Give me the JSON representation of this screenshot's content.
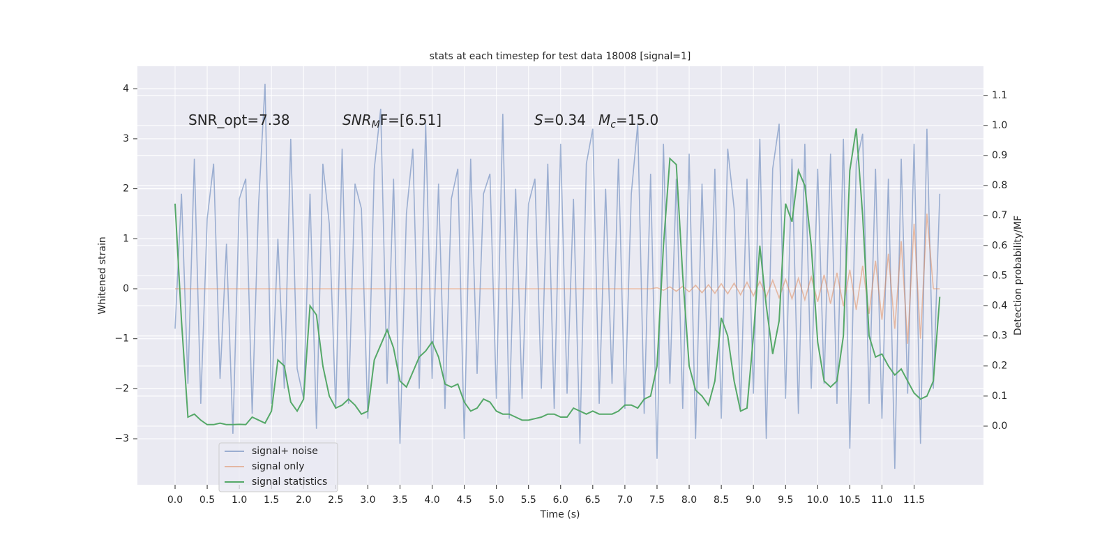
{
  "chart_data": {
    "type": "line",
    "title": "stats at each timestep for test data 18008 [signal=1]",
    "xlabel": "Time (s)",
    "ylabel": "Whitened strain",
    "y2label": "Detection probability/MF",
    "annotations": [
      {
        "main": "SNR_opt=7.38"
      },
      {
        "main": "SNR",
        "sub": "M",
        "tail": "F=[6.51]"
      },
      {
        "main": "S",
        "tail": "=0.34"
      },
      {
        "main": "M",
        "sub": "c",
        "tail": "=15.0"
      }
    ],
    "grid": true,
    "legend": "lower left",
    "xlim": [
      -0.586,
      12.58
    ],
    "ylim": [
      -3.92,
      4.45
    ],
    "y2lim": [
      -0.195,
      1.197
    ],
    "xticks": [
      {
        "value": 0,
        "label": "0.0"
      },
      0.5,
      {
        "value": 1,
        "label": "1.0"
      },
      1.5,
      {
        "value": 2,
        "label": "2.0"
      },
      2.5,
      {
        "value": 3,
        "label": "3.0"
      },
      3.5,
      {
        "value": 4,
        "label": "4.0"
      },
      4.5,
      {
        "value": 5,
        "label": "5.0"
      },
      5.5,
      {
        "value": 6,
        "label": "6.0"
      },
      6.5,
      {
        "value": 7,
        "label": "7.0"
      },
      7.5,
      {
        "value": 8,
        "label": "8.0"
      },
      8.5,
      {
        "value": 9,
        "label": "9.0"
      },
      9.5,
      {
        "value": 10,
        "label": "10.0"
      },
      10.5,
      {
        "value": 11,
        "label": "11.0"
      },
      11.5
    ],
    "yticks": [
      {
        "value": -3,
        "label": "−3"
      },
      {
        "value": -2,
        "label": "−2"
      },
      {
        "value": -1,
        "label": "−1"
      },
      0,
      1,
      2,
      3,
      4
    ],
    "y2ticks": [
      {
        "value": 0,
        "label": "0.0"
      },
      0.1,
      0.2,
      0.3,
      0.4,
      0.5,
      0.6,
      0.7,
      0.8,
      0.9,
      {
        "value": 1,
        "label": "1.0"
      },
      1.1
    ],
    "x": [
      0,
      0.1,
      0.2,
      0.3,
      0.4,
      0.5,
      0.6,
      0.7,
      0.8,
      0.9,
      1,
      1.1,
      1.2,
      1.3,
      1.4,
      1.5,
      1.6,
      1.7,
      1.8,
      1.9,
      2,
      2.1,
      2.2,
      2.3,
      2.4,
      2.5,
      2.6,
      2.7,
      2.8,
      2.9,
      3,
      3.1,
      3.2,
      3.3,
      3.4,
      3.5,
      3.6,
      3.7,
      3.8,
      3.9,
      4,
      4.1,
      4.2,
      4.3,
      4.4,
      4.5,
      4.6,
      4.7,
      4.8,
      4.9,
      5,
      5.1,
      5.2,
      5.3,
      5.4,
      5.5,
      5.6,
      5.7,
      5.8,
      5.9,
      6,
      6.1,
      6.2,
      6.3,
      6.4,
      6.5,
      6.6,
      6.7,
      6.8,
      6.9,
      7,
      7.1,
      7.2,
      7.3,
      7.4,
      7.5,
      7.6,
      7.7,
      7.8,
      7.9,
      8,
      8.1,
      8.2,
      8.3,
      8.4,
      8.5,
      8.6,
      8.7,
      8.8,
      8.9,
      9,
      9.1,
      9.2,
      9.3,
      9.4,
      9.5,
      9.6,
      9.7,
      9.8,
      9.9,
      10,
      10.1,
      10.2,
      10.3,
      10.4,
      10.5,
      10.6,
      10.7,
      10.8,
      10.9,
      11,
      11.1,
      11.2,
      11.3,
      11.4,
      11.5,
      11.6,
      11.7,
      11.8,
      11.9
    ],
    "series": [
      {
        "name": "signal+ noise",
        "color": "#4c72b0",
        "opacity": 0.5,
        "values": [
          -0.8,
          1.9,
          -1.9,
          2.6,
          -2.3,
          1.4,
          2.5,
          -1.8,
          0.9,
          -2.9,
          1.8,
          2.2,
          -2.5,
          1.7,
          4.1,
          -2.3,
          1.0,
          -2.0,
          3.0,
          -1.6,
          -2.2,
          1.9,
          -2.8,
          2.5,
          1.3,
          -2.4,
          2.8,
          -2.3,
          2.1,
          1.6,
          -2.6,
          2.4,
          3.6,
          -1.9,
          2.2,
          -3.1,
          1.5,
          2.8,
          -2.0,
          3.3,
          -1.8,
          2.1,
          -2.4,
          1.8,
          2.4,
          -3.0,
          2.6,
          -1.7,
          1.9,
          2.3,
          -2.2,
          3.5,
          -2.6,
          2.0,
          -2.2,
          1.7,
          2.2,
          -2.0,
          2.5,
          -2.4,
          2.9,
          -2.1,
          1.8,
          -3.1,
          2.5,
          3.2,
          -2.3,
          2.0,
          -1.9,
          2.6,
          -2.4,
          1.9,
          3.3,
          -2.5,
          2.3,
          -3.4,
          2.9,
          -1.9,
          2.2,
          -2.4,
          2.7,
          -3.0,
          2.1,
          -2.0,
          2.4,
          -2.6,
          2.8,
          1.6,
          -2.4,
          2.2,
          -2.1,
          3.0,
          -3.0,
          2.4,
          3.3,
          -2.2,
          2.6,
          -2.5,
          2.9,
          -2.0,
          2.4,
          -1.9,
          2.7,
          -2.3,
          3.0,
          -3.2,
          2.5,
          3.1,
          -2.3,
          2.4,
          -2.6,
          2.2,
          -3.6,
          2.6,
          -2.1,
          2.9,
          -3.1,
          3.2,
          -2.0,
          1.9
        ]
      },
      {
        "name": "signal only",
        "color": "#dd8452",
        "opacity": 0.5,
        "values": [
          0,
          0,
          0,
          0,
          0,
          0,
          0,
          0,
          0,
          0,
          0,
          0,
          0,
          0,
          0,
          0,
          0,
          0,
          0,
          0,
          0,
          0,
          0,
          0,
          0,
          0,
          0,
          0,
          0,
          0,
          0,
          0,
          0,
          0,
          0,
          0,
          0,
          0,
          0,
          0,
          0,
          0,
          0,
          0,
          0,
          0,
          0,
          0,
          0,
          0,
          0,
          0,
          0,
          0,
          0,
          0,
          0,
          0,
          0,
          0,
          0,
          0,
          0,
          0,
          0,
          0,
          0,
          0,
          0,
          0,
          0,
          0,
          0,
          0,
          0,
          0.02,
          -0.03,
          0.04,
          -0.05,
          0.05,
          -0.06,
          0.07,
          -0.08,
          0.08,
          -0.09,
          0.1,
          -0.1,
          0.11,
          -0.12,
          0.13,
          -0.14,
          0.15,
          -0.16,
          0.17,
          -0.18,
          0.19,
          -0.2,
          0.21,
          -0.22,
          0.24,
          -0.26,
          0.28,
          -0.3,
          0.32,
          -0.35,
          0.38,
          -0.42,
          0.46,
          -0.5,
          0.56,
          -0.62,
          0.7,
          -0.8,
          0.95,
          -1.1,
          1.3,
          -1.0,
          1.5,
          0,
          0
        ]
      },
      {
        "name": "signal statistics",
        "color": "#55a868",
        "opacity": 1,
        "axis": "y2",
        "values": [
          0.74,
          0.35,
          0.03,
          0.04,
          0.02,
          0.005,
          0.005,
          0.01,
          0.005,
          0.005,
          0.006,
          0.005,
          0.03,
          0.02,
          0.01,
          0.05,
          0.22,
          0.2,
          0.08,
          0.05,
          0.09,
          0.4,
          0.37,
          0.2,
          0.1,
          0.06,
          0.07,
          0.09,
          0.07,
          0.04,
          0.05,
          0.22,
          0.27,
          0.32,
          0.26,
          0.15,
          0.13,
          0.18,
          0.23,
          0.25,
          0.28,
          0.23,
          0.14,
          0.13,
          0.14,
          0.08,
          0.05,
          0.06,
          0.09,
          0.08,
          0.05,
          0.04,
          0.04,
          0.03,
          0.02,
          0.02,
          0.025,
          0.03,
          0.04,
          0.04,
          0.03,
          0.03,
          0.06,
          0.05,
          0.04,
          0.05,
          0.04,
          0.04,
          0.04,
          0.05,
          0.07,
          0.07,
          0.06,
          0.09,
          0.1,
          0.2,
          0.6,
          0.89,
          0.87,
          0.5,
          0.2,
          0.12,
          0.1,
          0.07,
          0.15,
          0.36,
          0.3,
          0.15,
          0.05,
          0.06,
          0.3,
          0.6,
          0.4,
          0.24,
          0.35,
          0.74,
          0.68,
          0.85,
          0.8,
          0.6,
          0.28,
          0.15,
          0.13,
          0.15,
          0.3,
          0.85,
          0.99,
          0.7,
          0.3,
          0.23,
          0.24,
          0.2,
          0.17,
          0.19,
          0.15,
          0.11,
          0.09,
          0.1,
          0.15,
          0.43
        ]
      }
    ]
  }
}
